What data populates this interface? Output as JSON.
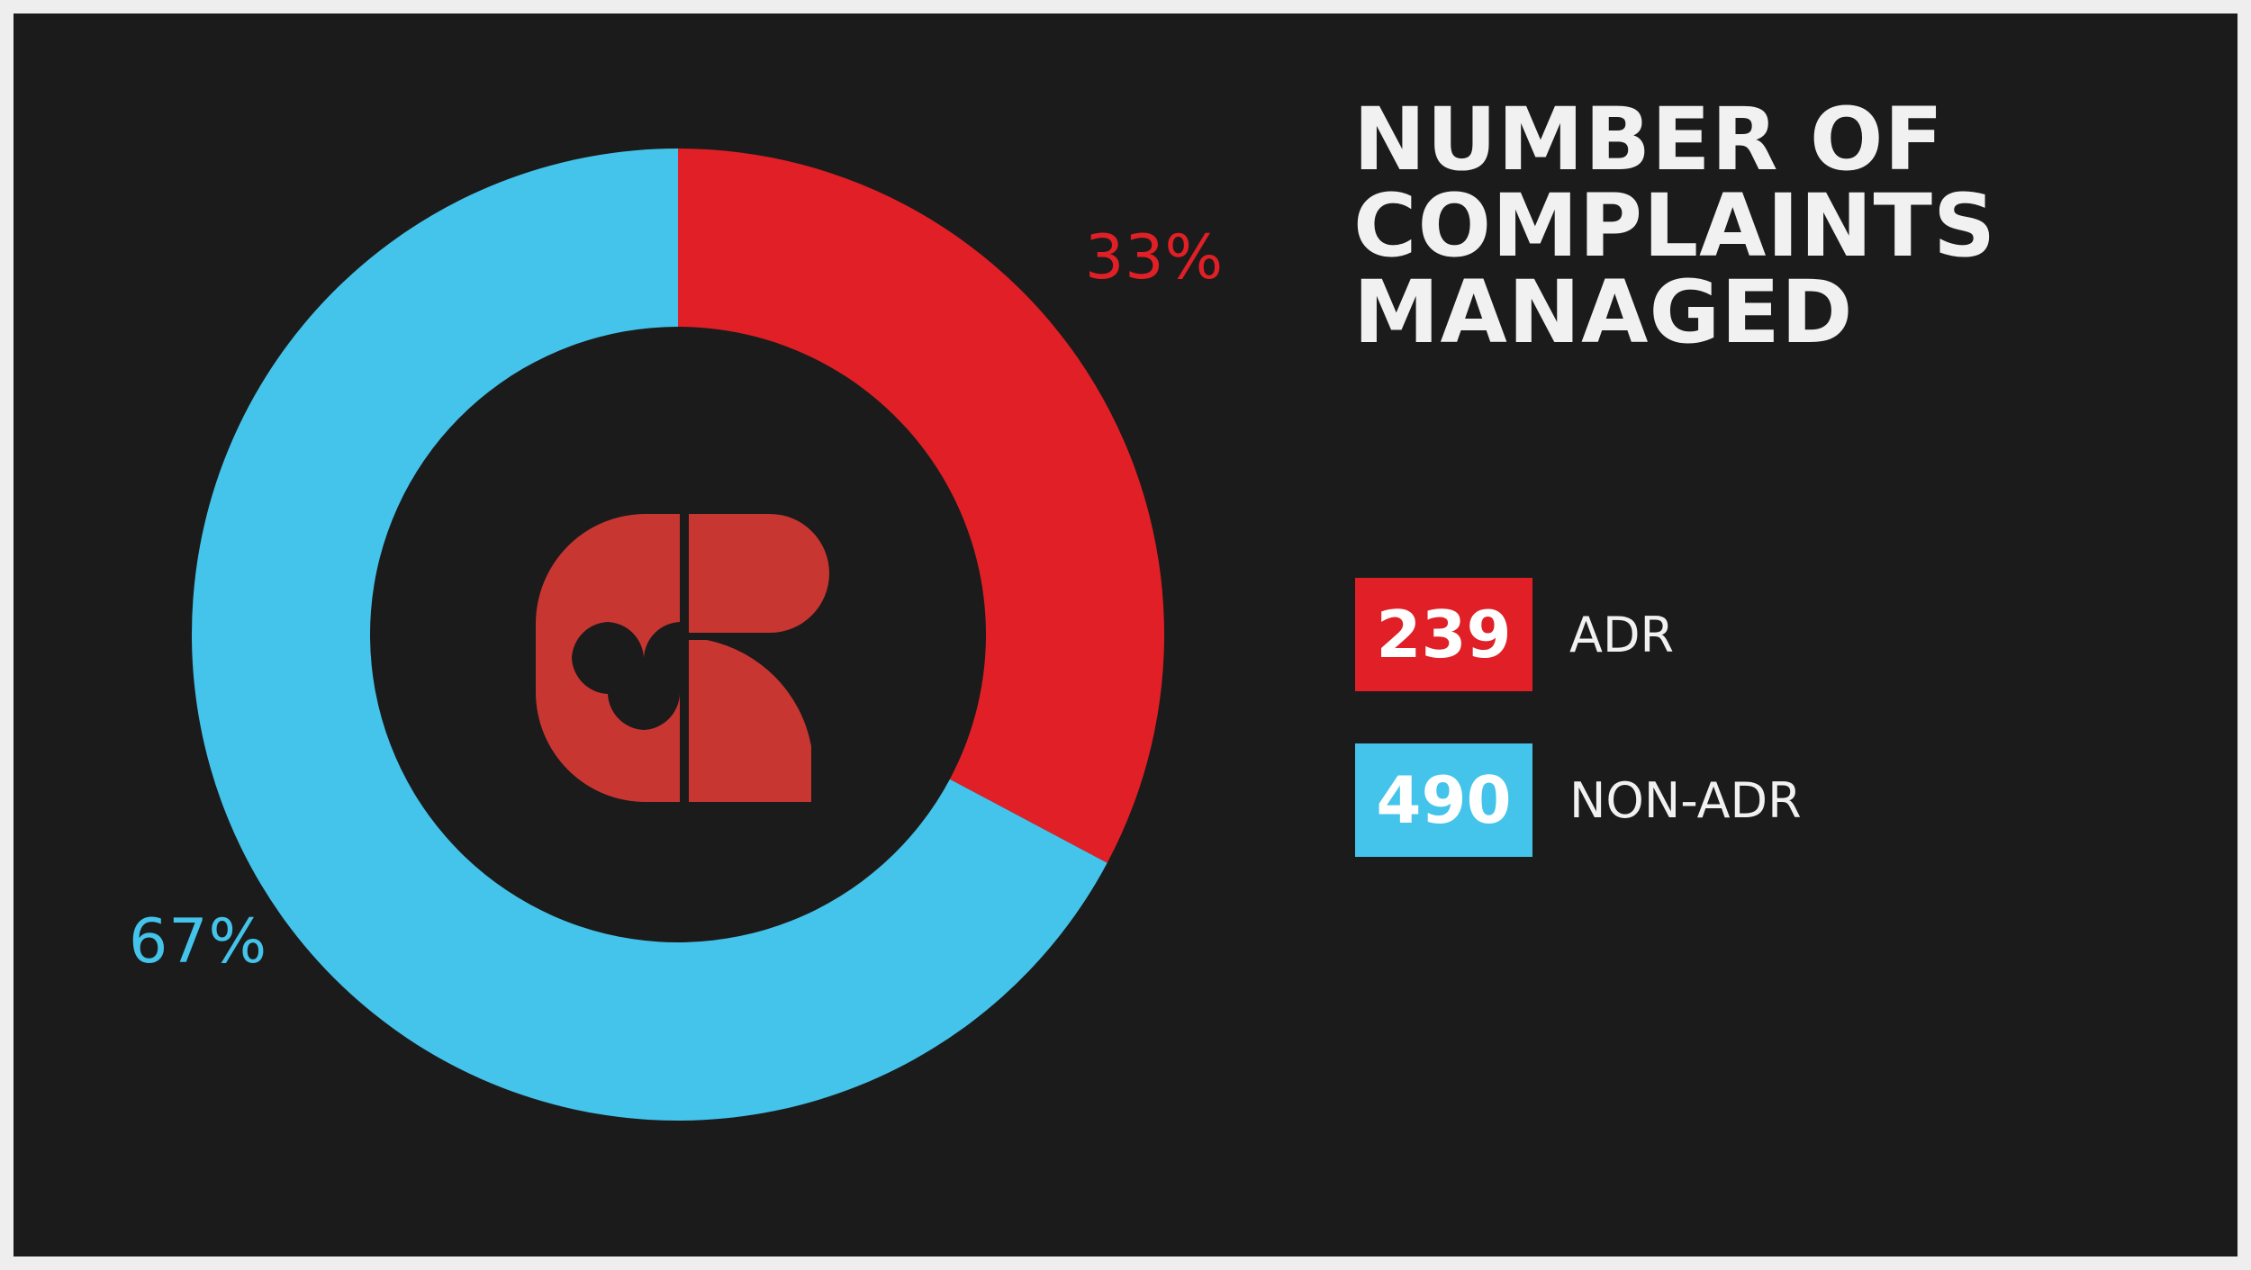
{
  "title_lines": [
    "NUMBER OF",
    "COMPLAINTS",
    "MANAGED"
  ],
  "colors": {
    "adr": "#e02026",
    "non_adr": "#44c4ea",
    "background": "#1b1b1b",
    "logo": "#c83632"
  },
  "logo_icon": "cr-monogram-logo",
  "chart_data": {
    "type": "pie",
    "donut": true,
    "categories": [
      "ADR",
      "NON-ADR"
    ],
    "values": [
      239,
      490
    ],
    "percent_labels": [
      "33%",
      "67%"
    ],
    "title": "NUMBER OF COMPLAINTS MANAGED",
    "legend": "right"
  }
}
